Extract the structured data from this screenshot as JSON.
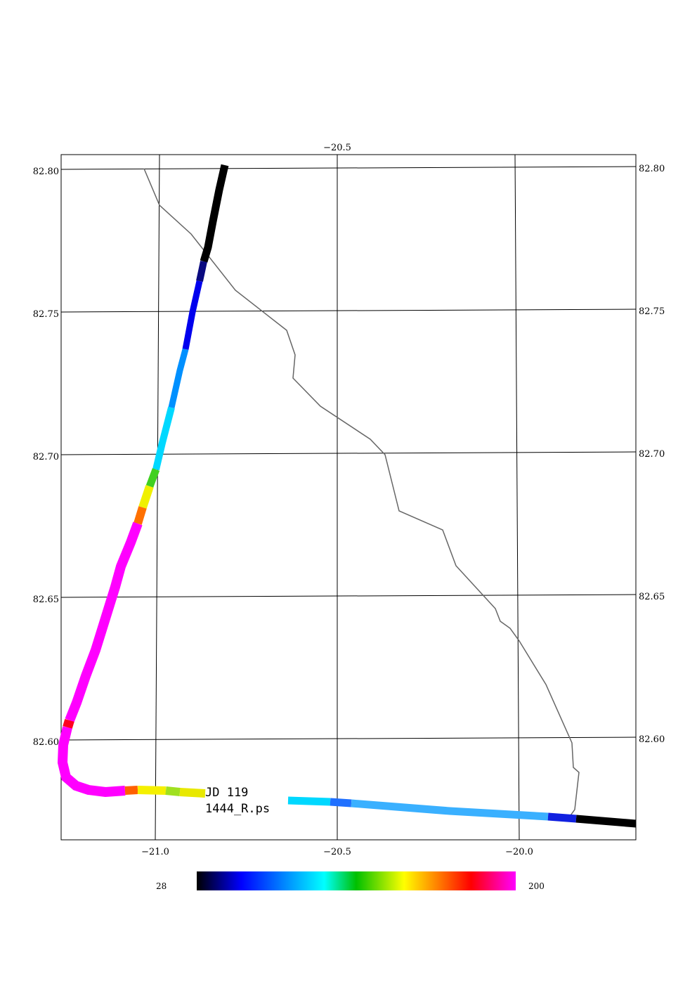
{
  "map": {
    "top_lon_label": "−20.5",
    "lon_ticks": [
      {
        "value": -21.0,
        "label": "−21.0"
      },
      {
        "value": -20.5,
        "label": "−20.5"
      },
      {
        "value": -20.0,
        "label": "−20.0"
      }
    ],
    "lat_ticks": [
      {
        "value": 82.8,
        "label": "82.80"
      },
      {
        "value": 82.75,
        "label": "82.75"
      },
      {
        "value": 82.7,
        "label": "82.70"
      },
      {
        "value": 82.65,
        "label": "82.65"
      },
      {
        "value": 82.6,
        "label": "82.60"
      }
    ],
    "annotation_line1": "JD 119",
    "annotation_line2": "1444_R.ps",
    "colorbar": {
      "min_label": "28",
      "max_label": "200",
      "stops": [
        "#000000",
        "#0000ff",
        "#00a0ff",
        "#00ffff",
        "#00c000",
        "#ffff00",
        "#ff0000",
        "#ff00ff"
      ]
    },
    "coast_color": "#666666",
    "grid_color": "#000000"
  }
}
